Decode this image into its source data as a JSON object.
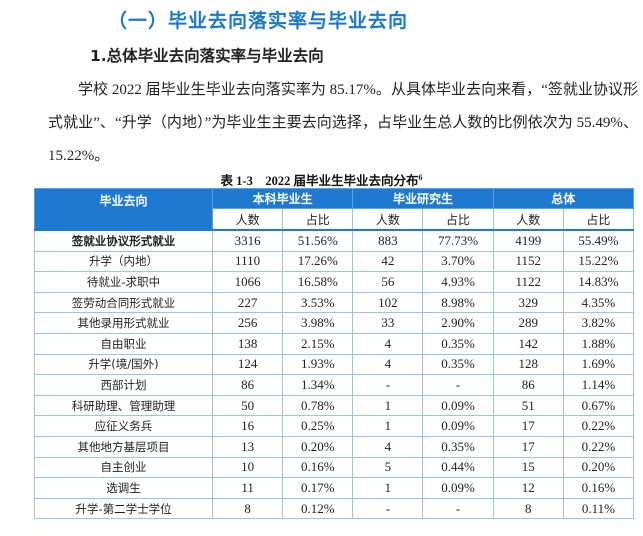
{
  "section_title": "（一）毕业去向落实率与毕业去向",
  "subsection_title": "1.总体毕业去向落实率与毕业去向",
  "paragraph": "学校 2022 届毕业生毕业去向落实率为 85.17%。从具体毕业去向来看，“签就业协议形式就业”、“升学（内地）”为毕业生主要去向选择，占毕业生总人数的比例依次为 55.49%、15.22%。",
  "table": {
    "caption": "表 1-3　2022 届毕业生毕业去向分布",
    "caption_footnote": "6",
    "headers": {
      "direction": "毕业去向",
      "undergrad": "本科毕业生",
      "graduate": "毕业研究生",
      "total": "总体",
      "count": "人数",
      "ratio": "占比"
    },
    "rows": [
      {
        "name": "签就业协议形式就业",
        "u_n": "3316",
        "u_p": "51.56%",
        "g_n": "883",
        "g_p": "77.73%",
        "t_n": "4199",
        "t_p": "55.49%"
      },
      {
        "name": "升学（内地）",
        "u_n": "1110",
        "u_p": "17.26%",
        "g_n": "42",
        "g_p": "3.70%",
        "t_n": "1152",
        "t_p": "15.22%"
      },
      {
        "name": "待就业-求职中",
        "u_n": "1066",
        "u_p": "16.58%",
        "g_n": "56",
        "g_p": "4.93%",
        "t_n": "1122",
        "t_p": "14.83%"
      },
      {
        "name": "签劳动合同形式就业",
        "u_n": "227",
        "u_p": "3.53%",
        "g_n": "102",
        "g_p": "8.98%",
        "t_n": "329",
        "t_p": "4.35%"
      },
      {
        "name": "其他录用形式就业",
        "u_n": "256",
        "u_p": "3.98%",
        "g_n": "33",
        "g_p": "2.90%",
        "t_n": "289",
        "t_p": "3.82%"
      },
      {
        "name": "自由职业",
        "u_n": "138",
        "u_p": "2.15%",
        "g_n": "4",
        "g_p": "0.35%",
        "t_n": "142",
        "t_p": "1.88%"
      },
      {
        "name": "升学(境/国外)",
        "u_n": "124",
        "u_p": "1.93%",
        "g_n": "4",
        "g_p": "0.35%",
        "t_n": "128",
        "t_p": "1.69%"
      },
      {
        "name": "西部计划",
        "u_n": "86",
        "u_p": "1.34%",
        "g_n": "-",
        "g_p": "-",
        "t_n": "86",
        "t_p": "1.14%"
      },
      {
        "name": "科研助理、管理助理",
        "u_n": "50",
        "u_p": "0.78%",
        "g_n": "1",
        "g_p": "0.09%",
        "t_n": "51",
        "t_p": "0.67%"
      },
      {
        "name": "应征义务兵",
        "u_n": "16",
        "u_p": "0.25%",
        "g_n": "1",
        "g_p": "0.09%",
        "t_n": "17",
        "t_p": "0.22%"
      },
      {
        "name": "其他地方基层项目",
        "u_n": "13",
        "u_p": "0.20%",
        "g_n": "4",
        "g_p": "0.35%",
        "t_n": "17",
        "t_p": "0.22%"
      },
      {
        "name": "自主创业",
        "u_n": "10",
        "u_p": "0.16%",
        "g_n": "5",
        "g_p": "0.44%",
        "t_n": "15",
        "t_p": "0.20%"
      },
      {
        "name": "选调生",
        "u_n": "11",
        "u_p": "0.17%",
        "g_n": "1",
        "g_p": "0.09%",
        "t_n": "12",
        "t_p": "0.16%"
      },
      {
        "name": "升学-第二学士学位",
        "u_n": "8",
        "u_p": "0.12%",
        "g_n": "-",
        "g_p": "-",
        "t_n": "8",
        "t_p": "0.11%"
      }
    ]
  },
  "colors": {
    "accent": "#1e7ad0",
    "title": "#1a78c9",
    "border": "#9cc3ea"
  }
}
